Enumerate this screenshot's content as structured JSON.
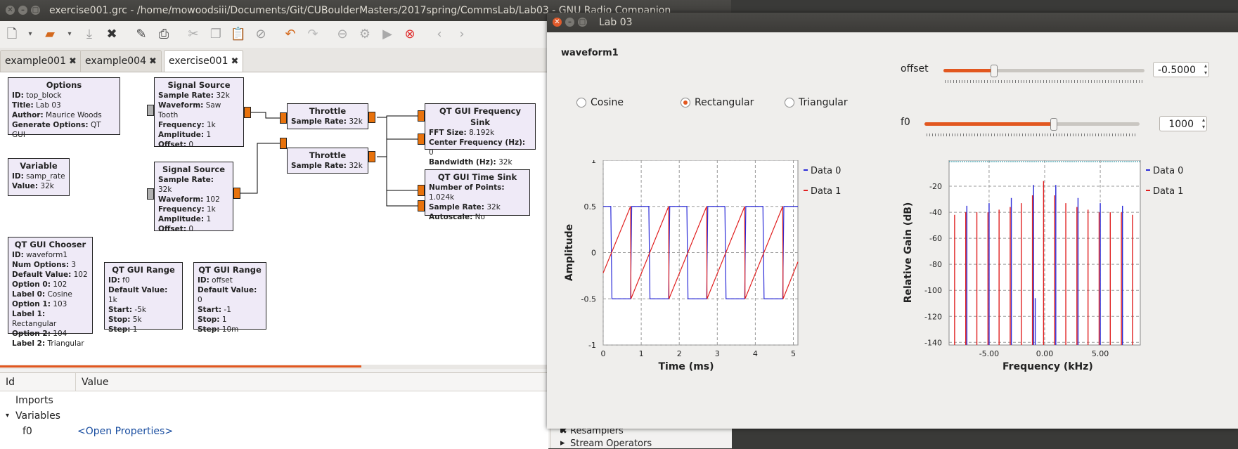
{
  "grc": {
    "window_title": "exercise001.grc - /home/mowoodsiii/Documents/Git/CUBoulderMasters/2017spring/CommsLab/Lab03 - GNU Radio Companion",
    "tabs": [
      {
        "label": "example001"
      },
      {
        "label": "example004"
      },
      {
        "label": "exercise001"
      }
    ],
    "blocks": {
      "options": {
        "title": "Options",
        "rows": [
          [
            "ID:",
            "top_block"
          ],
          [
            "Title:",
            "Lab 03"
          ],
          [
            "Author:",
            "Maurice Woods"
          ],
          [
            "Generate Options:",
            "QT GUI"
          ]
        ]
      },
      "variable": {
        "title": "Variable",
        "rows": [
          [
            "ID:",
            "samp_rate"
          ],
          [
            "Value:",
            "32k"
          ]
        ]
      },
      "chooser": {
        "title": "QT GUI Chooser",
        "rows": [
          [
            "ID:",
            "waveform1"
          ],
          [
            "Num Options:",
            "3"
          ],
          [
            "Default Value:",
            "102"
          ],
          [
            "Option 0:",
            "102"
          ],
          [
            "Label 0:",
            "Cosine"
          ],
          [
            "Option 1:",
            "103"
          ],
          [
            "Label 1:",
            "Rectangular"
          ],
          [
            "Option 2:",
            "104"
          ],
          [
            "Label 2:",
            "Triangular"
          ]
        ]
      },
      "sigsrc1": {
        "title": "Signal Source",
        "rows": [
          [
            "Sample Rate:",
            "32k"
          ],
          [
            "Waveform:",
            "Saw Tooth"
          ],
          [
            "Frequency:",
            "1k"
          ],
          [
            "Amplitude:",
            "1"
          ],
          [
            "Offset:",
            "0"
          ]
        ]
      },
      "sigsrc2": {
        "title": "Signal Source",
        "rows": [
          [
            "Sample Rate:",
            "32k"
          ],
          [
            "Waveform:",
            "102"
          ],
          [
            "Frequency:",
            "1k"
          ],
          [
            "Amplitude:",
            "1"
          ],
          [
            "Offset:",
            "0"
          ]
        ]
      },
      "throttle1": {
        "title": "Throttle",
        "rows": [
          [
            "Sample Rate:",
            "32k"
          ]
        ]
      },
      "throttle2": {
        "title": "Throttle",
        "rows": [
          [
            "Sample Rate:",
            "32k"
          ]
        ]
      },
      "freqsink": {
        "title": "QT GUI Frequency Sink",
        "rows": [
          [
            "FFT Size:",
            "8.192k"
          ],
          [
            "Center Frequency (Hz):",
            "0"
          ],
          [
            "Bandwidth (Hz):",
            "32k"
          ]
        ]
      },
      "timesink": {
        "title": "QT GUI Time Sink",
        "rows": [
          [
            "Number of Points:",
            "1.024k"
          ],
          [
            "Sample Rate:",
            "32k"
          ],
          [
            "Autoscale:",
            "No"
          ]
        ]
      },
      "range_f0": {
        "title": "QT GUI Range",
        "rows": [
          [
            "ID:",
            "f0"
          ],
          [
            "Default Value:",
            "1k"
          ],
          [
            "Start:",
            "-5k"
          ],
          [
            "Stop:",
            "5k"
          ],
          [
            "Step:",
            "1"
          ]
        ]
      },
      "range_offset": {
        "title": "QT GUI Range",
        "rows": [
          [
            "ID:",
            "offset"
          ],
          [
            "Default Value:",
            "0"
          ],
          [
            "Start:",
            "-1"
          ],
          [
            "Stop:",
            "1"
          ],
          [
            "Step:",
            "10m"
          ]
        ]
      }
    },
    "props": {
      "col_id": "Id",
      "col_value": "Value",
      "rows": [
        {
          "id": "Imports",
          "value": ""
        },
        {
          "id": "Variables",
          "value": ""
        },
        {
          "id": "f0",
          "value": "<Open Properties>"
        }
      ]
    },
    "library": [
      "Resamplers",
      "Stream Operators"
    ]
  },
  "lab": {
    "window_title": "Lab 03",
    "chooser_label": "waveform1",
    "radios": [
      {
        "label": "Cosine",
        "checked": false
      },
      {
        "label": "Rectangular",
        "checked": true
      },
      {
        "label": "Triangular",
        "checked": false
      }
    ],
    "offset": {
      "label": "offset",
      "value": "-0.5000",
      "fraction": 0.25
    },
    "f0": {
      "label": "f0",
      "value": "1000",
      "fraction": 0.6
    }
  },
  "chart_data": [
    {
      "type": "line",
      "xlabel": "Time (ms)",
      "ylabel": "Amplitude",
      "xlim": [
        0,
        5.12
      ],
      "ylim": [
        -1,
        1
      ],
      "xticks": [
        "0",
        "1",
        "2",
        "3",
        "4",
        "5"
      ],
      "yticks": [
        "1",
        "0.5",
        "0",
        "-0.5",
        "-1"
      ],
      "grid": true,
      "legend": "right",
      "series": [
        {
          "name": "Data 0",
          "color": "#2b2bd8",
          "waveform": "rectangular",
          "high": 0.5,
          "low": -0.5,
          "period_ms": 1,
          "x": [
            0,
            0.2,
            0.23,
            0.72,
            0.75,
            1.2,
            1.23,
            1.72,
            1.75,
            2.2,
            2.23,
            2.72,
            2.75,
            3.2,
            3.23,
            3.72,
            3.75,
            4.2,
            4.23,
            4.72,
            4.75,
            5.12
          ],
          "y": [
            0.5,
            0.5,
            -0.5,
            -0.5,
            0.5,
            0.5,
            -0.5,
            -0.5,
            0.5,
            0.5,
            -0.5,
            -0.5,
            0.5,
            0.5,
            -0.5,
            -0.5,
            0.5,
            0.5,
            -0.5,
            -0.5,
            0.5,
            0.5
          ]
        },
        {
          "name": "Data 1",
          "color": "#e02020",
          "waveform": "sawtooth",
          "high": 0.5,
          "low": -0.5,
          "period_ms": 1,
          "x": [
            0,
            0.72,
            0.73,
            1.72,
            1.73,
            2.72,
            2.73,
            3.72,
            3.73,
            4.72,
            4.73,
            5.12
          ],
          "y": [
            -0.22,
            0.5,
            -0.5,
            0.5,
            -0.5,
            0.5,
            -0.5,
            0.5,
            -0.5,
            0.5,
            -0.5,
            -0.1
          ]
        }
      ]
    },
    {
      "type": "bar",
      "xlabel": "Frequency (kHz)",
      "ylabel": "Relative Gain (dB)",
      "xlim": [
        -8.6,
        8.6
      ],
      "ylim": [
        -142,
        0
      ],
      "xticks": [
        "-5.00",
        "0.00",
        "5.00"
      ],
      "yticks": [
        "-20",
        "-40",
        "-60",
        "-80",
        "-100",
        "-120",
        "-140"
      ],
      "grid": true,
      "legend": "right",
      "series": [
        {
          "name": "Data 0",
          "color": "#2b2bd8",
          "x": [
            -7,
            -5,
            -3,
            -1,
            1,
            3,
            5,
            7,
            -0.85
          ],
          "y": [
            -35,
            -33,
            -29,
            -19,
            -19,
            -29,
            -33,
            -35,
            -106
          ]
        },
        {
          "name": "Data 1",
          "color": "#e02020",
          "x": [
            -8.1,
            -7.1,
            -6.1,
            -5.1,
            -4.1,
            -3.1,
            -2.1,
            -1.1,
            -0.1,
            0.9,
            1.9,
            2.9,
            3.9,
            4.9,
            5.9,
            6.9,
            7.9
          ],
          "y": [
            -42,
            -40,
            -40,
            -40,
            -38,
            -36,
            -33,
            -27,
            -16,
            -27,
            -33,
            -36,
            -38,
            -40,
            -40,
            -40,
            -42
          ]
        }
      ]
    }
  ]
}
